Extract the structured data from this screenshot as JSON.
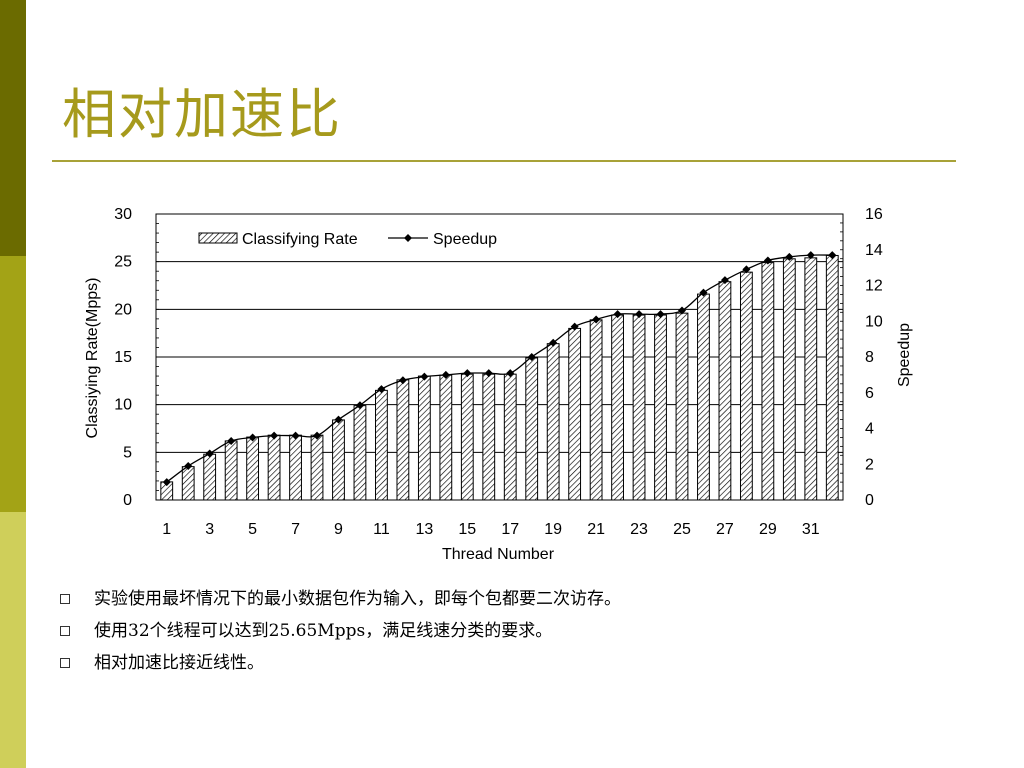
{
  "slide": {
    "title": "相对加速比",
    "bullets": [
      "实验使用最坏情况下的最小数据包作为输入，即每个包都要二次访存。",
      "使用32个线程可以达到25.65Mpps，满足线速分类的要求。",
      "相对加速比接近线性。"
    ]
  },
  "colors": {
    "dark_band": "#6b6b00",
    "mid_band": "#a3a316",
    "light_band": "#cfcf5a",
    "title": "#a69a1c",
    "rule": "#a8a238"
  },
  "chart_data": {
    "type": "bar",
    "xlabel": "Thread Number",
    "ylabel": "Classiying Rate(Mpps)",
    "y2label": "Speedup",
    "ylim": [
      0,
      30
    ],
    "y2lim": [
      0,
      16
    ],
    "yticks": [
      0,
      5,
      10,
      15,
      20,
      25,
      30
    ],
    "y2ticks": [
      0,
      2,
      4,
      6,
      8,
      10,
      12,
      14,
      16
    ],
    "xticklabels": [
      "1",
      "3",
      "5",
      "7",
      "9",
      "11",
      "13",
      "15",
      "17",
      "19",
      "21",
      "23",
      "25",
      "27",
      "29",
      "31"
    ],
    "grid": "horizontal",
    "legend_position": "top-left",
    "categories": [
      1,
      2,
      3,
      4,
      5,
      6,
      7,
      8,
      9,
      10,
      11,
      12,
      13,
      14,
      15,
      16,
      17,
      18,
      19,
      20,
      21,
      22,
      23,
      24,
      25,
      26,
      27,
      28,
      29,
      30,
      31,
      32
    ],
    "series": [
      {
        "name": "Classifying Rate",
        "type": "bar",
        "axis": "left",
        "values": [
          1.9,
          3.5,
          4.8,
          6.2,
          6.6,
          6.8,
          6.8,
          6.8,
          8.4,
          9.9,
          11.5,
          12.6,
          13.0,
          13.1,
          13.2,
          13.2,
          13.2,
          14.9,
          16.4,
          18.0,
          18.9,
          19.4,
          19.4,
          19.4,
          19.6,
          21.6,
          22.9,
          23.9,
          24.9,
          25.3,
          25.4,
          25.65
        ]
      },
      {
        "name": "Speedup",
        "type": "line",
        "axis": "right",
        "values": [
          1.0,
          1.9,
          2.6,
          3.3,
          3.5,
          3.6,
          3.6,
          3.6,
          4.5,
          5.3,
          6.2,
          6.7,
          6.9,
          7.0,
          7.1,
          7.1,
          7.1,
          8.0,
          8.8,
          9.7,
          10.1,
          10.4,
          10.4,
          10.4,
          10.6,
          11.6,
          12.3,
          12.9,
          13.4,
          13.6,
          13.7,
          13.7
        ]
      }
    ]
  }
}
